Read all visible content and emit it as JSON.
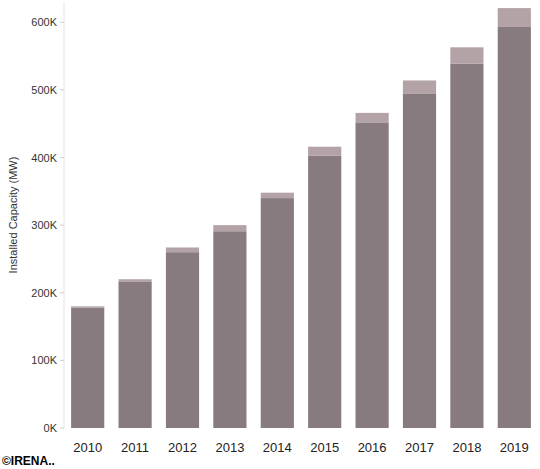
{
  "chart_data": {
    "type": "bar",
    "stacked": true,
    "y_label": "Installed Capacity (MW)",
    "annotations": [
      "©IRENA.."
    ],
    "categories": [
      "2010",
      "2011",
      "2012",
      "2013",
      "2014",
      "2015",
      "2016",
      "2017",
      "2018",
      "2019"
    ],
    "series": [
      {
        "color": "#877b7f",
        "values": [
          178000,
          216000,
          260000,
          291000,
          340000,
          403000,
          452000,
          494000,
          539000,
          593000
        ]
      },
      {
        "color": "#b3a3a7",
        "values": [
          2000,
          4000,
          7000,
          9000,
          8000,
          13000,
          14000,
          20000,
          24000,
          28000
        ]
      }
    ],
    "ylim": [
      0,
      630000
    ],
    "yticks": [
      {
        "value": 0,
        "label": "0K"
      },
      {
        "value": 100000,
        "label": "100K"
      },
      {
        "value": 200000,
        "label": "200K"
      },
      {
        "value": 300000,
        "label": "300K"
      },
      {
        "value": 400000,
        "label": "400K"
      },
      {
        "value": 500000,
        "label": "500K"
      },
      {
        "value": 600000,
        "label": "600K"
      }
    ],
    "grid": false
  }
}
